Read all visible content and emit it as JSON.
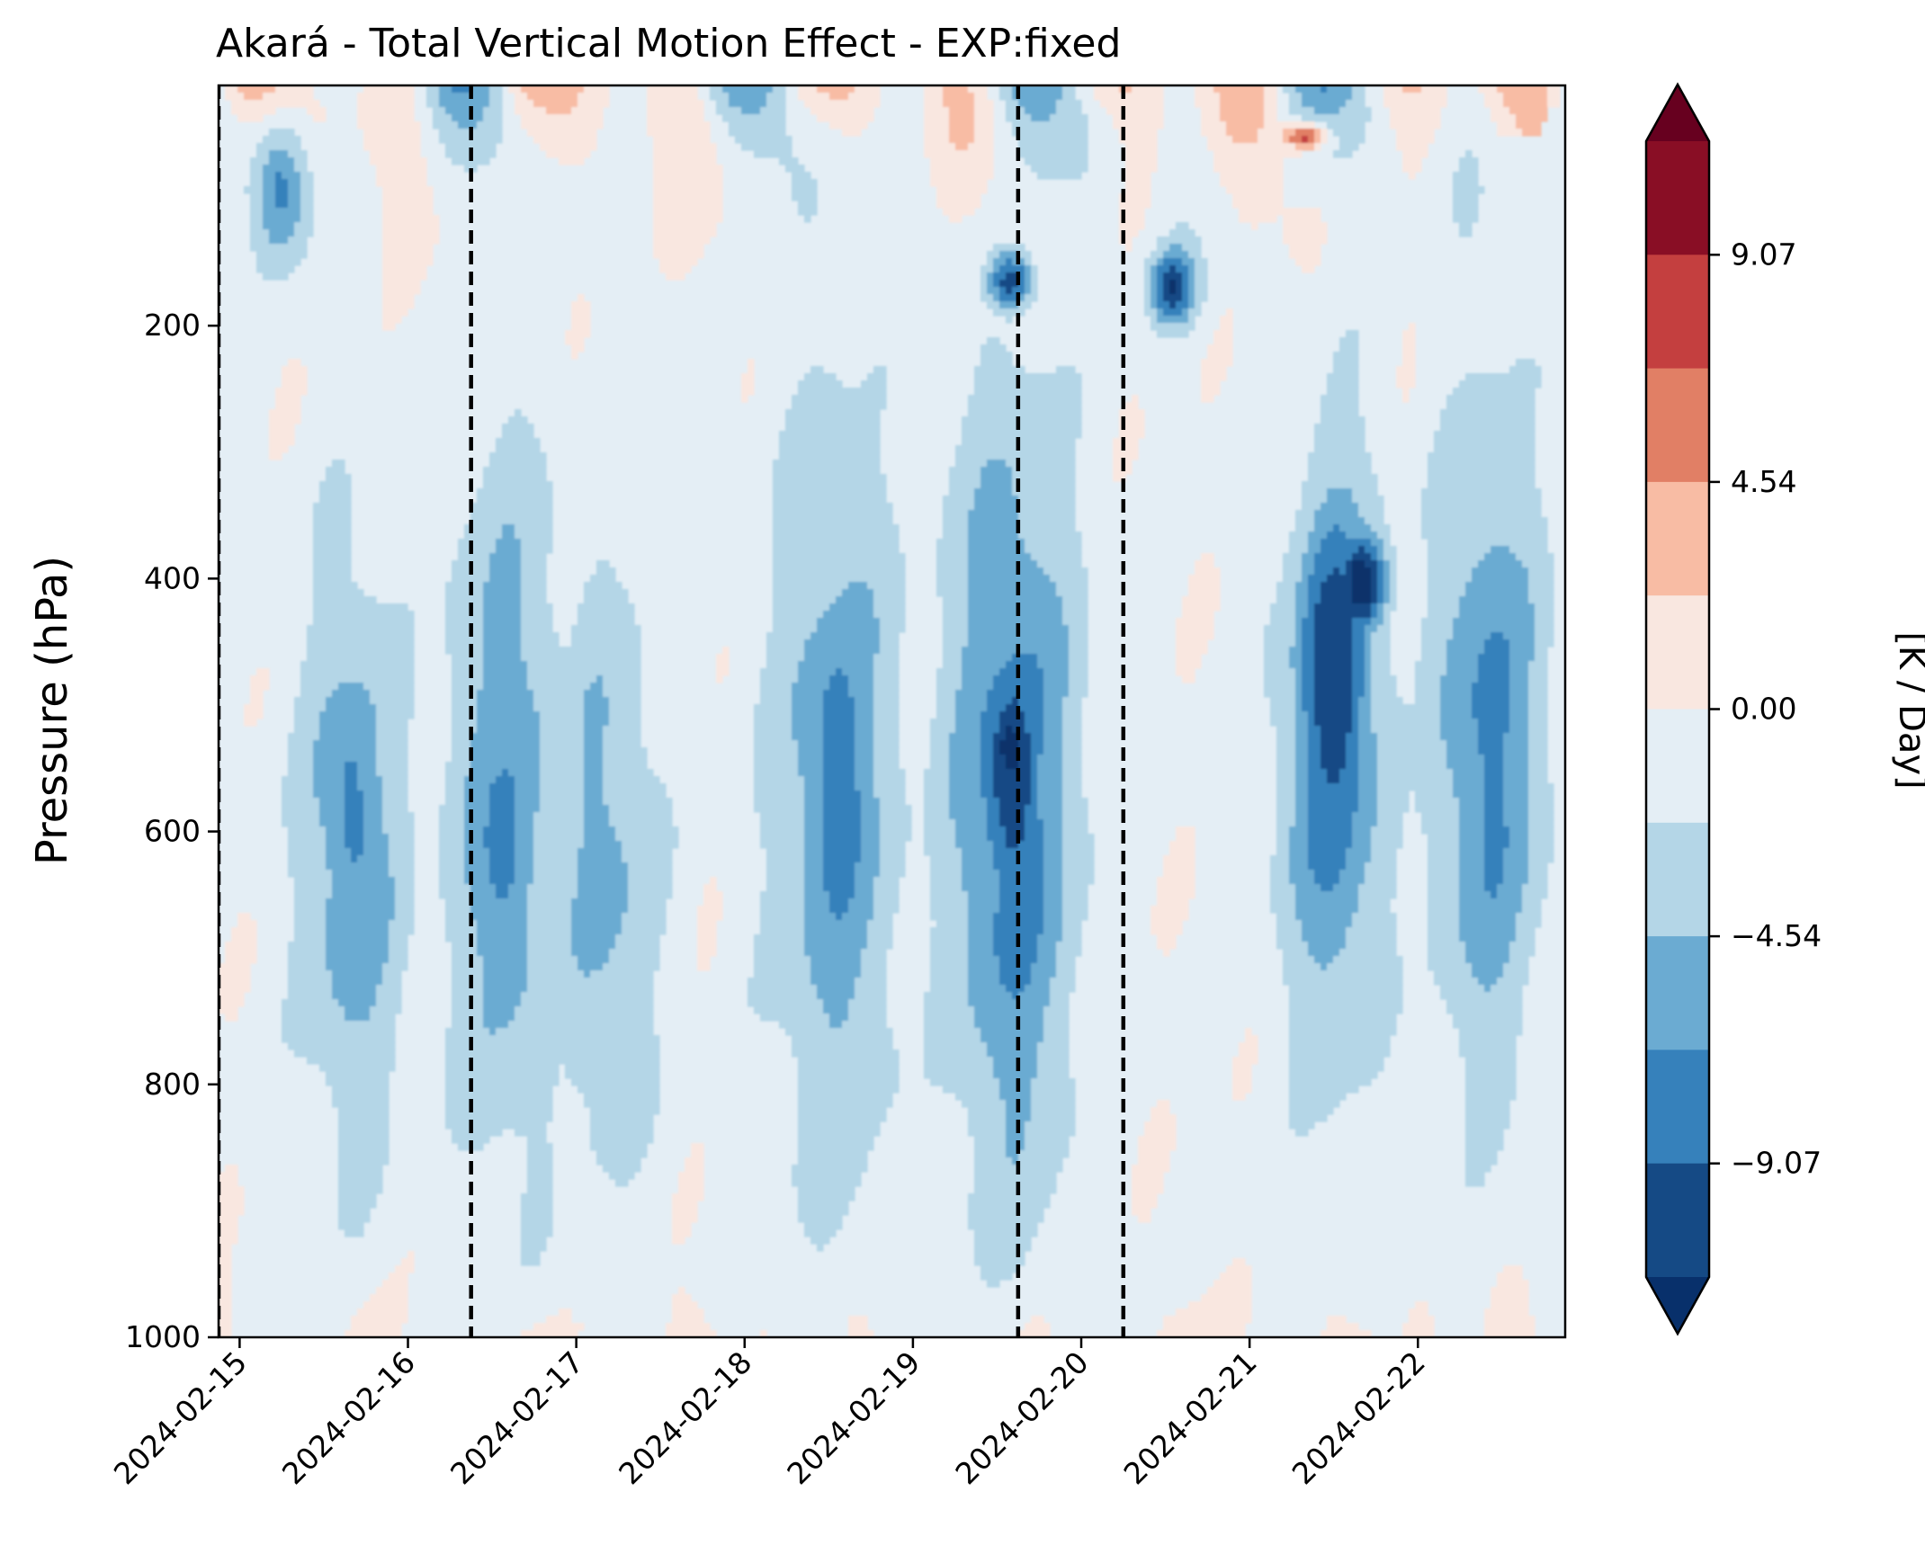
{
  "chart_data": {
    "type": "heatmap",
    "subtype": "filled-contour",
    "title": "Akará - Total Vertical Motion Effect - EXP:fixed",
    "xlabel": "",
    "ylabel": "Pressure (hPa)",
    "colorbar_label": "[K / Day]",
    "x_ticks": [
      "2024-02-15",
      "2024-02-16",
      "2024-02-17",
      "2024-02-18",
      "2024-02-19",
      "2024-02-20",
      "2024-02-21",
      "2024-02-22"
    ],
    "x_range": [
      "2024-02-14T21:00",
      "2024-02-22T21:00"
    ],
    "y_ticks": [
      200,
      400,
      600,
      800,
      1000
    ],
    "y_range": [
      10,
      1000
    ],
    "y_inverted": true,
    "colorbar_ticks": [
      "9.07",
      "4.54",
      "0.00",
      "−4.54",
      "−9.07"
    ],
    "colorbar_extend": "both",
    "levels": [
      -11.34,
      -9.07,
      -6.8,
      -4.54,
      -2.27,
      0.0,
      2.27,
      4.54,
      6.8,
      9.07,
      11.34
    ],
    "colormap": [
      "#08306b",
      "#154a85",
      "#3681bb",
      "#6babd2",
      "#b4d6e7",
      "#e4eef5",
      "#f9e7e0",
      "#f8bca4",
      "#e17f65",
      "#c43f3f",
      "#890e25",
      "#67001f"
    ],
    "event_lines": [
      "2024-02-14T21:00",
      "2024-02-16T09:00",
      "2024-02-19T15:00",
      "2024-02-20T06:00"
    ],
    "features": [
      {
        "date": "2024-02-15T16:00",
        "p_top": 370,
        "p_bottom": 860,
        "min_value": -4.5
      },
      {
        "date": "2024-02-15T16:00",
        "p_top": 460,
        "p_bottom": 720,
        "min_value": -6.0
      },
      {
        "date": "2024-02-16T14:00",
        "p_top": 280,
        "p_bottom": 880,
        "min_value": -4.5
      },
      {
        "date": "2024-02-16T14:00",
        "p_top": 480,
        "p_bottom": 760,
        "min_value": -5.8
      },
      {
        "date": "2024-02-17T04:00",
        "p_top": 380,
        "p_bottom": 870,
        "min_value": -3.8
      },
      {
        "date": "2024-02-18T13:00",
        "p_top": 250,
        "p_bottom": 900,
        "min_value": -4.5
      },
      {
        "date": "2024-02-18T13:00",
        "p_top": 360,
        "p_bottom": 760,
        "min_value": -6.0
      },
      {
        "date": "2024-02-19T14:00",
        "p_top": 250,
        "p_bottom": 900,
        "min_value": -6.0
      },
      {
        "date": "2024-02-19T14:00",
        "p_top": 420,
        "p_bottom": 700,
        "min_value": -8.5
      },
      {
        "date": "2024-02-19T14:00",
        "p_top": 490,
        "p_bottom": 580,
        "min_value": -10.0
      },
      {
        "date": "2024-02-21T12:00",
        "p_top": 290,
        "p_bottom": 780,
        "min_value": -6.0
      },
      {
        "date": "2024-02-21T12:00",
        "p_top": 320,
        "p_bottom": 640,
        "min_value": -8.5
      },
      {
        "date": "2024-02-21T16:00",
        "p_top": 360,
        "p_bottom": 450,
        "min_value": -10.0
      },
      {
        "date": "2024-02-22T10:00",
        "p_top": 270,
        "p_bottom": 790,
        "min_value": -5.5
      },
      {
        "date": "2024-02-20T13:00",
        "p_top": 140,
        "p_bottom": 200,
        "min_value": -8.0
      },
      {
        "date": "2024-02-19T14:00",
        "p_top": 140,
        "p_bottom": 190,
        "min_value": -8.0
      },
      {
        "date": "2024-02-21T08:00",
        "p_top": 40,
        "p_bottom": 60,
        "min_value": 8.0
      },
      {
        "date": "2024-02-15T06:00",
        "p_top": 30,
        "p_bottom": 150,
        "min_value": -6.0
      }
    ]
  }
}
